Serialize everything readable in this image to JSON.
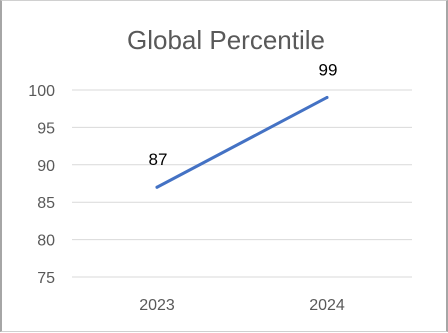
{
  "chart_data": {
    "type": "line",
    "title": "Global Percentile",
    "xlabel": "",
    "ylabel": "",
    "categories": [
      "2023",
      "2024"
    ],
    "series": [
      {
        "values": [
          87,
          99
        ],
        "color": "#4472c4"
      }
    ],
    "data_labels": [
      "87",
      "99"
    ],
    "y_ticks": [
      75,
      80,
      85,
      90,
      95,
      100
    ],
    "ylim": [
      72.5,
      102.5
    ],
    "grid": true,
    "legend": "none",
    "gridline_color": "#d9d9d9",
    "axis_text_color": "#595959"
  }
}
